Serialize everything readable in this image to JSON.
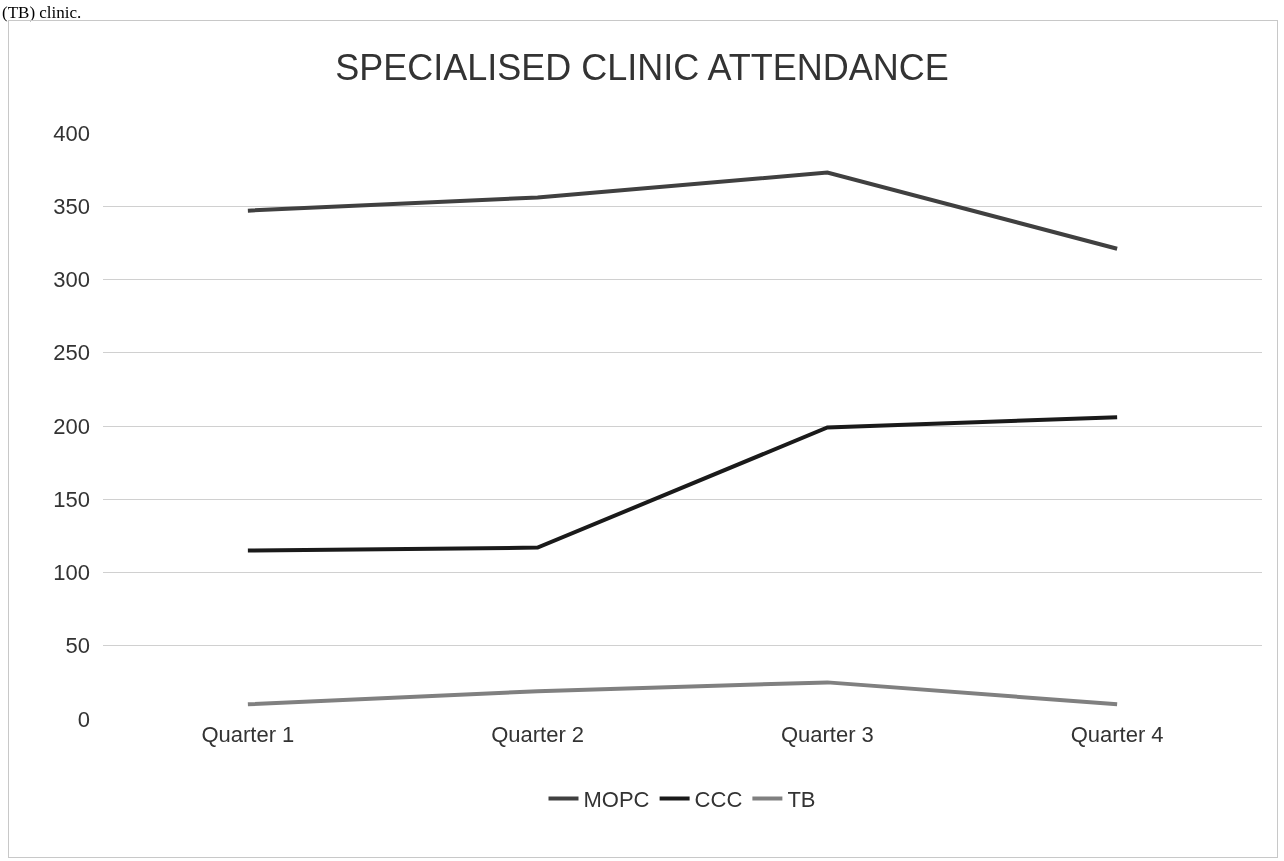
{
  "chart_data": {
    "type": "line",
    "title": "SPECIALISED CLINIC ATTENDANCE",
    "annotations": [
      "(TB) clinic."
    ],
    "categories": [
      "Quarter 1",
      "Quarter 2",
      "Quarter 3",
      "Quarter 4"
    ],
    "series": [
      {
        "name": "MOPC",
        "color": "#404040",
        "values": [
          347,
          356,
          373,
          321
        ]
      },
      {
        "name": "CCC",
        "color": "#1a1a1a",
        "values": [
          115,
          117,
          199,
          206
        ]
      },
      {
        "name": "TB",
        "color": "#808080",
        "values": [
          10,
          19,
          25,
          10
        ]
      }
    ],
    "ylim": [
      0,
      400
    ],
    "yticks": [
      0,
      50,
      100,
      150,
      200,
      250,
      300,
      350,
      400
    ],
    "grid": "y",
    "legend": "bottom",
    "marker": "none",
    "line_style": "solid"
  }
}
